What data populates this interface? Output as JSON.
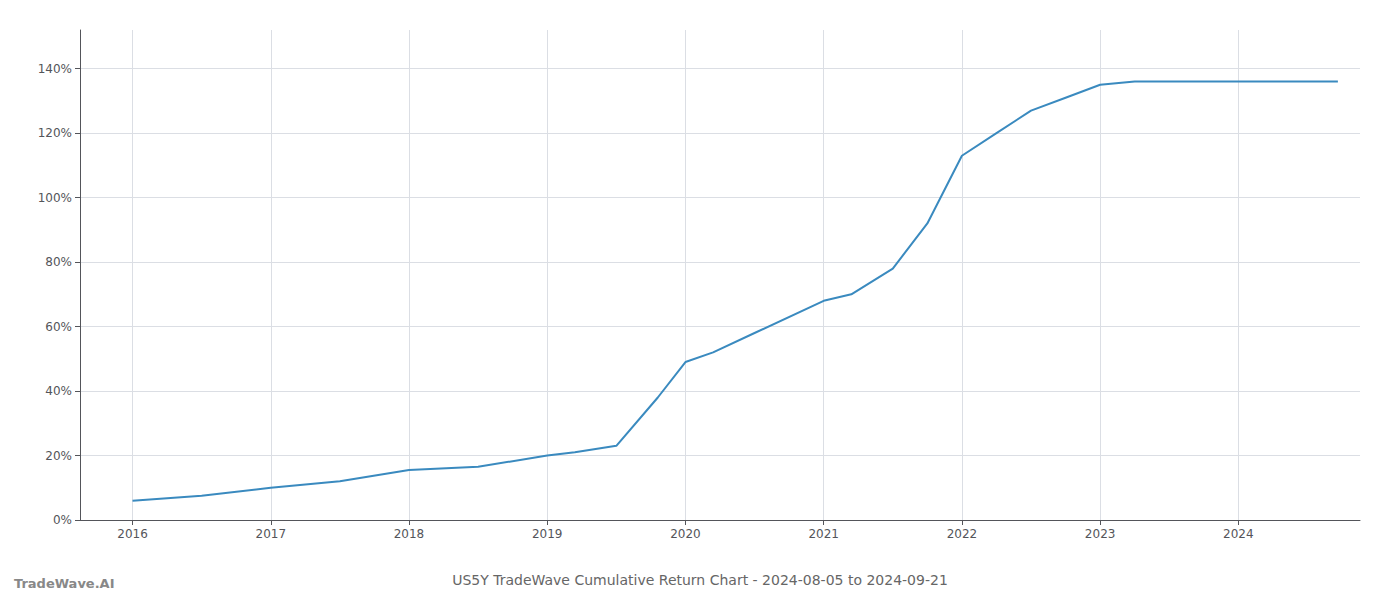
{
  "chart_data": {
    "type": "line",
    "title": "US5Y TradeWave Cumulative Return Chart - 2024-08-05 to 2024-09-21",
    "annotations": [
      "TradeWave.AI"
    ],
    "x": [
      2016.0,
      2016.5,
      2017.0,
      2017.5,
      2018.0,
      2018.5,
      2019.0,
      2019.2,
      2019.5,
      2019.8,
      2020.0,
      2020.2,
      2020.5,
      2021.0,
      2021.2,
      2021.5,
      2021.75,
      2022.0,
      2022.25,
      2022.5,
      2022.75,
      2023.0,
      2023.25,
      2023.5,
      2023.75,
      2024.0,
      2024.3,
      2024.72
    ],
    "values": [
      0.06,
      0.075,
      0.1,
      0.12,
      0.155,
      0.165,
      0.2,
      0.21,
      0.23,
      0.38,
      0.49,
      0.52,
      0.58,
      0.68,
      0.7,
      0.78,
      0.92,
      1.13,
      1.2,
      1.27,
      1.31,
      1.35,
      1.36,
      1.36,
      1.36,
      1.36,
      1.36,
      1.36
    ],
    "color": "#3a8abf",
    "xlim": [
      2015.62,
      2024.88
    ],
    "ylim": [
      0.0,
      1.52
    ],
    "xticks": [
      2016,
      2017,
      2018,
      2019,
      2020,
      2021,
      2022,
      2023,
      2024
    ],
    "yticks": [
      {
        "value": 0.0,
        "label": "0%"
      },
      {
        "value": 0.2,
        "label": "20%"
      },
      {
        "value": 0.4,
        "label": "40%"
      },
      {
        "value": 0.6,
        "label": "60%"
      },
      {
        "value": 0.8,
        "label": "80%"
      },
      {
        "value": 1.0,
        "label": "100%"
      },
      {
        "value": 1.2,
        "label": "120%"
      },
      {
        "value": 1.4,
        "label": "140%"
      }
    ],
    "grid": true
  }
}
